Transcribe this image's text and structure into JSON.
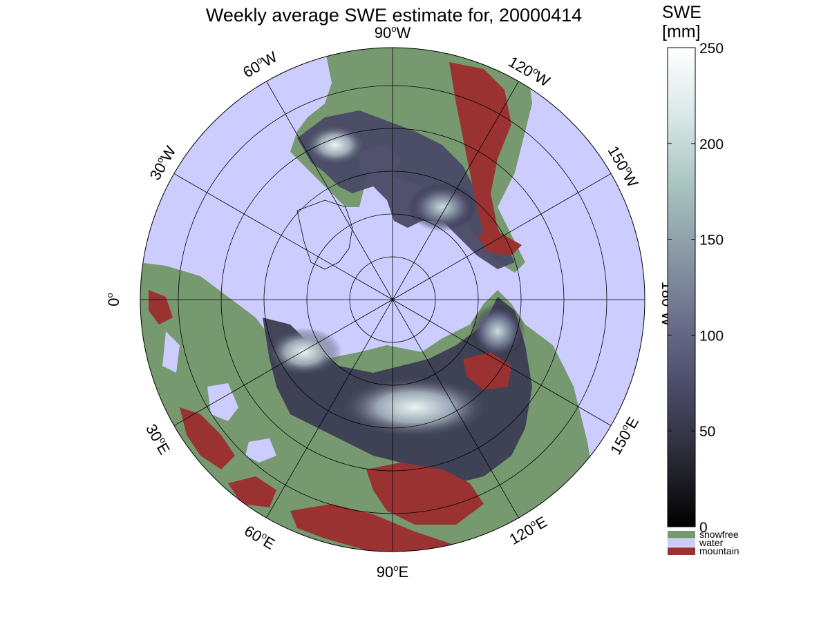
{
  "title": "Weekly average SWE estimate for, 20000414",
  "colorbar": {
    "title_line1": "SWE",
    "title_line2": "[mm]",
    "ticks": [
      {
        "value": 0,
        "label": "0"
      },
      {
        "value": 50,
        "label": "50"
      },
      {
        "value": 100,
        "label": "100"
      },
      {
        "value": 150,
        "label": "150"
      },
      {
        "value": 200,
        "label": "200"
      },
      {
        "value": 250,
        "label": "250"
      }
    ],
    "range": [
      0,
      250
    ],
    "gradient": [
      "#000000",
      "#2a2a35",
      "#4a4a68",
      "#6a6e8a",
      "#8a9aa6",
      "#a9c4c0",
      "#d8e8e6",
      "#ffffff"
    ]
  },
  "categories": [
    {
      "key": "snowfree",
      "label": "snowfree",
      "color": "#76996f"
    },
    {
      "key": "water",
      "label": "water",
      "color": "#ccccfe"
    },
    {
      "key": "mountain",
      "label": "mountain",
      "color": "#9b3232"
    }
  ],
  "map": {
    "projection": "polar-stereographic-north",
    "ocean_color": "#ccccfe",
    "land_color": "#76996f",
    "mountain_color": "#9b3232",
    "longitude_labels": [
      {
        "lon": 90,
        "label_deg": "90",
        "label_hem": "W"
      },
      {
        "lon": 120,
        "label_deg": "120",
        "label_hem": "W"
      },
      {
        "lon": 150,
        "label_deg": "150",
        "label_hem": "W"
      },
      {
        "lon": 180,
        "label_deg": "180",
        "label_hem": "W"
      },
      {
        "lon": 150,
        "label_deg": "150",
        "label_hem": "E"
      },
      {
        "lon": 120,
        "label_deg": "120",
        "label_hem": "E"
      },
      {
        "lon": 90,
        "label_deg": "90",
        "label_hem": "E"
      },
      {
        "lon": 60,
        "label_deg": "60",
        "label_hem": "E"
      },
      {
        "lon": 30,
        "label_deg": "30",
        "label_hem": "E"
      },
      {
        "lon": 0,
        "label_deg": "0",
        "label_hem": ""
      },
      {
        "lon": 30,
        "label_deg": "30",
        "label_hem": "W"
      },
      {
        "lon": 60,
        "label_deg": "60",
        "label_hem": "W"
      }
    ]
  }
}
